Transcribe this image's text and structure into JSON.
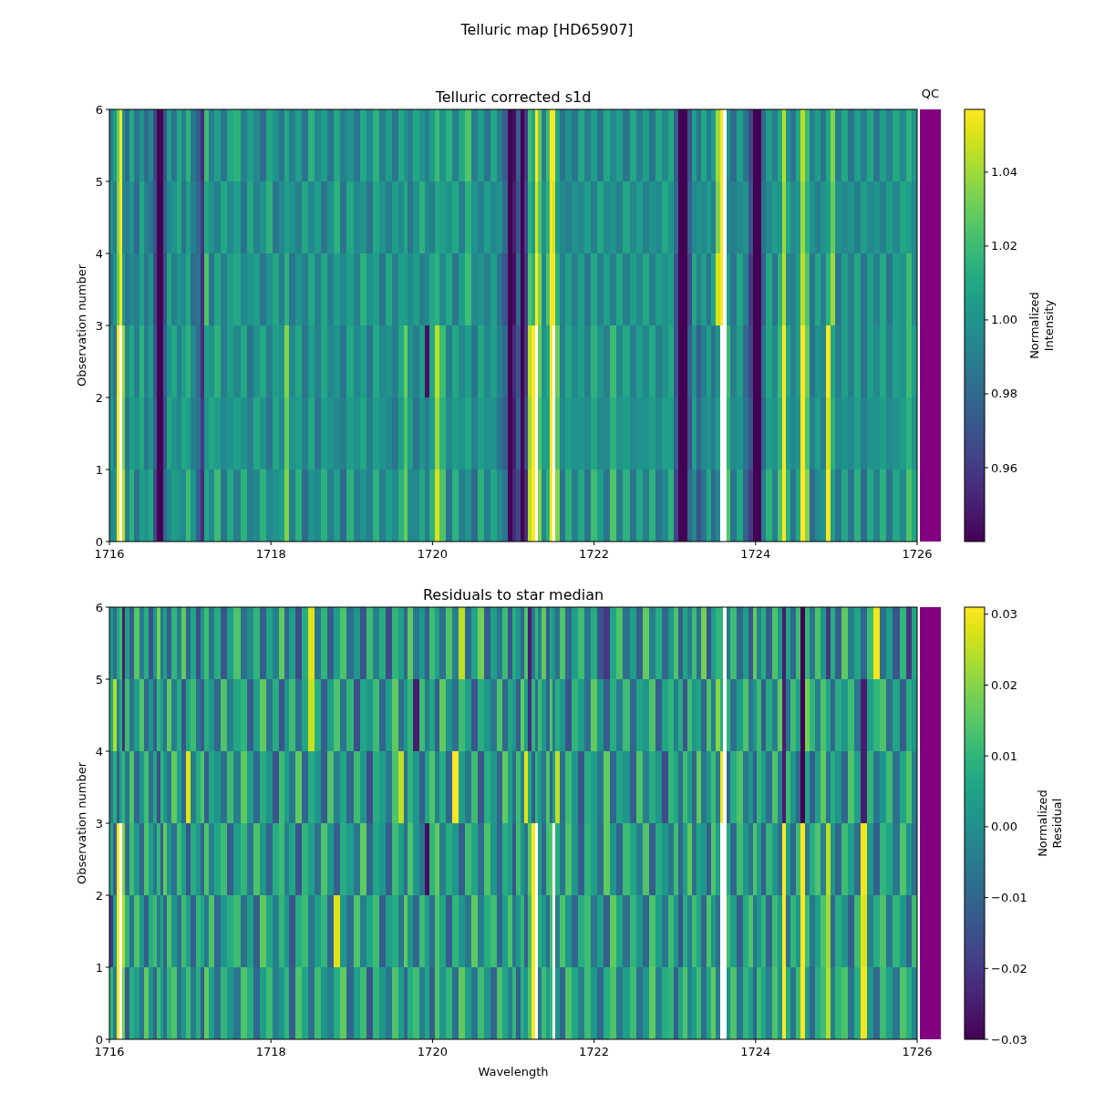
{
  "chart_data": [
    {
      "type": "heatmap",
      "title": "Telluric map [HD65907]",
      "subtitle": "Telluric corrected s1d",
      "ylabel": "Observation number",
      "clabel": "Normalized\nIntensity",
      "annotations": [
        "QC"
      ],
      "x": [
        1716.02,
        1716.07,
        1716.11,
        1716.14,
        1716.17,
        1716.22,
        1716.28,
        1716.34,
        1716.4,
        1716.46,
        1716.52,
        1716.57,
        1716.61,
        1716.65,
        1716.69,
        1716.74,
        1716.8,
        1716.86,
        1716.92,
        1716.98,
        1717.04,
        1717.1,
        1717.15,
        1717.2,
        1717.26,
        1717.34,
        1717.42,
        1717.5,
        1717.58,
        1717.66,
        1717.74,
        1717.82,
        1717.9,
        1717.98,
        1718.06,
        1718.14,
        1718.19,
        1718.26,
        1718.34,
        1718.42,
        1718.5,
        1718.58,
        1718.66,
        1718.74,
        1718.82,
        1718.9,
        1718.98,
        1719.06,
        1719.14,
        1719.22,
        1719.3,
        1719.38,
        1719.46,
        1719.54,
        1719.62,
        1719.66,
        1719.72,
        1719.8,
        1719.87,
        1719.93,
        1720,
        1720.06,
        1720.12,
        1720.2,
        1720.28,
        1720.36,
        1720.44,
        1720.52,
        1720.6,
        1720.68,
        1720.76,
        1720.84,
        1720.9,
        1720.96,
        1721.01,
        1721.06,
        1721.11,
        1721.16,
        1721.2,
        1721.25,
        1721.29,
        1721.33,
        1721.38,
        1721.43,
        1721.47,
        1721.5,
        1721.54,
        1721.6,
        1721.68,
        1721.76,
        1721.84,
        1721.92,
        1722,
        1722.08,
        1722.16,
        1722.24,
        1722.32,
        1722.4,
        1722.48,
        1722.56,
        1722.64,
        1722.72,
        1722.8,
        1722.88,
        1722.96,
        1723.02,
        1723.07,
        1723.13,
        1723.18,
        1723.24,
        1723.3,
        1723.36,
        1723.42,
        1723.48,
        1723.54,
        1723.58,
        1723.62,
        1723.66,
        1723.72,
        1723.8,
        1723.88,
        1723.94,
        1723.99,
        1724.04,
        1724.09,
        1724.16,
        1724.24,
        1724.3,
        1724.35,
        1724.4,
        1724.46,
        1724.53,
        1724.59,
        1724.64,
        1724.7,
        1724.77,
        1724.84,
        1724.9,
        1724.95,
        1725.02,
        1725.1,
        1725.18,
        1725.26,
        1725.34,
        1725.42,
        1725.5,
        1725.58,
        1725.66,
        1725.74,
        1725.82,
        1725.9,
        1725.97
      ],
      "xlim": [
        1716,
        1726
      ],
      "xticks": [
        1716,
        1718,
        1720,
        1722,
        1724,
        1726
      ],
      "ylim": [
        0,
        6
      ],
      "yticks": [
        0,
        1,
        2,
        3,
        4,
        5,
        6
      ],
      "clim": [
        0.94,
        1.057
      ],
      "cticks": [
        0.96,
        0.98,
        {
          "value": 1,
          "label": "1.00"
        },
        1.02,
        1.04
      ],
      "cells": [
        [
          0.99,
          1.005,
          1.03,
          1.057,
          1.0,
          0.98,
          1.01,
          0.985,
          1.0,
          0.98,
          0.995,
          0.965,
          0.94,
          0.94,
          0.97,
          1.005,
          0.985,
          1.01,
          0.99,
          1.015,
          0.985,
          0.975,
          0.955,
          1.02,
          0.99,
          1.005,
          0.985,
          1.01,
          1.015,
          0.99,
          1.005,
          0.995,
          0.98,
          1.01,
          1.0,
          0.985,
          1.01,
          0.99,
          1.005,
          0.985,
          1.015,
          0.995,
          1.005,
          0.985,
          1.01,
          0.99,
          1.0,
          0.985,
          1.01,
          0.995,
          1.015,
          0.99,
          1.005,
          0.985,
          1.01,
          1.0,
          0.99,
          1.01,
          1.0,
          0.99,
          1.005,
          1.02,
          1.0,
          1.015,
          0.99,
          1.01,
          1.025,
          0.99,
          1.005,
          0.985,
          1.01,
          0.99,
          0.975,
          0.94,
          0.945,
          0.975,
          0.94,
          0.96,
          1.02,
          1.01,
          1.057,
          1.03,
          0.99,
          1.02,
          1.057,
          1.057,
          1.01,
          0.985,
          1.0,
          0.985,
          1.01,
          0.99,
          1.005,
          0.985,
          1.01,
          0.995,
          1.005,
          0.985,
          1.01,
          0.99,
          1.005,
          0.985,
          1.01,
          0.995,
          1.01,
          0.975,
          0.94,
          0.94,
          0.97,
          1.005,
          0.985,
          1.01,
          0.99,
          1.005,
          1.04,
          1.057,
          null,
          1.0,
          0.98,
          1.005,
          0.985,
          0.965,
          0.94,
          0.94,
          0.98,
          1.005,
          0.99,
          1.01,
          1.045,
          1.0,
          0.985,
          1.01,
          1.045,
          1.02,
          0.99,
          1.005,
          0.985,
          1.01,
          1.035,
          0.99,
          1.01,
          0.985,
          1.005,
          0.99,
          1.01,
          0.985,
          1.005,
          0.99,
          1.01,
          0.995,
          1.015,
          1.0
        ],
        [
          1.0,
          0.99,
          1.035,
          1.057,
          0.995,
          0.99,
          1.0,
          0.98,
          1.01,
          0.99,
          0.985,
          0.97,
          0.94,
          0.94,
          0.975,
          0.995,
          1.0,
          1.01,
          0.985,
          1.005,
          0.99,
          0.98,
          0.96,
          1.01,
          1.0,
          0.99,
          1.01,
          0.995,
          1.005,
          0.985,
          1.01,
          0.99,
          1.0,
          1.015,
          0.985,
          0.995,
          1.005,
          1.0,
          0.99,
          1.01,
          0.995,
          1.005,
          0.985,
          1.0,
          1.015,
          0.985,
          1.01,
          0.995,
          1.0,
          0.985,
          1.01,
          1.0,
          0.99,
          1.005,
          0.995,
          1.01,
          0.985,
          1.0,
          1.015,
          0.995,
          0.99,
          1.01,
          1.005,
          1.0,
          1.01,
          0.99,
          1.015,
          1.0,
          0.99,
          1.005,
          0.995,
          1.0,
          0.98,
          0.94,
          0.95,
          0.97,
          0.94,
          0.965,
          1.015,
          1.005,
          1.05,
          1.025,
          1.0,
          1.015,
          1.057,
          1.05,
          1.005,
          0.995,
          0.99,
          1.0,
          0.995,
          1.005,
          0.99,
          1.01,
          0.995,
          1.0,
          0.99,
          1.01,
          0.995,
          1.005,
          0.99,
          1.0,
          0.995,
          1.01,
          1.0,
          0.98,
          0.94,
          0.94,
          0.975,
          0.995,
          1.0,
          0.995,
          1.005,
          0.99,
          1.035,
          1.057,
          null,
          0.995,
          0.99,
          0.995,
          1.0,
          0.97,
          0.94,
          0.94,
          0.985,
          0.995,
          1.005,
          1.0,
          1.04,
          1.01,
          0.995,
          1.0,
          1.04,
          1.015,
          1.0,
          0.99,
          1.0,
          1.005,
          1.03,
          1.0,
          0.995,
          1.0,
          0.99,
          1.005,
          0.995,
          1.0,
          0.99,
          1.005,
          0.995,
          1.01,
          1.005,
          0.995
        ],
        [
          0.985,
          1.0,
          1.03,
          1.057,
          1.005,
          0.985,
          0.995,
          0.99,
          1.005,
          0.985,
          1.0,
          0.965,
          0.94,
          0.94,
          0.97,
          1.01,
          0.99,
          1.0,
          0.995,
          1.01,
          0.98,
          0.985,
          0.955,
          1.025,
          0.985,
          1.01,
          0.99,
          1.005,
          1.01,
          0.995,
          1.0,
          1.005,
          0.985,
          1.0,
          1.01,
          0.99,
          1.015,
          0.985,
          1.0,
          0.99,
          1.01,
          0.99,
          1.01,
          0.99,
          1.005,
          0.995,
          1.005,
          0.99,
          1.015,
          1.0,
          1.005,
          0.985,
          1.01,
          0.99,
          1.005,
          1.005,
          0.995,
          1.005,
          0.99,
          0.995,
          1.01,
          1.015,
          0.995,
          1.01,
          0.985,
          1.005,
          1.02,
          0.995,
          1.0,
          0.99,
          1.005,
          0.985,
          0.97,
          0.94,
          0.945,
          0.98,
          0.94,
          0.96,
          1.025,
          1.015,
          1.057,
          1.035,
          0.995,
          1.025,
          1.057,
          1.057,
          1.015,
          0.99,
          1.005,
          0.99,
          1.005,
          0.985,
          1.01,
          0.99,
          1.005,
          0.99,
          1.01,
          0.99,
          1.005,
          0.995,
          1.01,
          0.99,
          1.005,
          1.0,
          1.005,
          0.97,
          0.94,
          0.94,
          0.965,
          1.01,
          0.99,
          1.005,
          0.985,
          1.01,
          1.05,
          1.057,
          null,
          1.005,
          0.985,
          1.01,
          0.99,
          0.96,
          0.94,
          0.94,
          0.975,
          1.01,
          0.985,
          1.015,
          1.045,
          0.995,
          0.99,
          1.005,
          1.045,
          1.025,
          0.985,
          1.01,
          0.99,
          1.015,
          1.04,
          0.985,
          1.005,
          0.99,
          1.01,
          0.985,
          1.005,
          0.99,
          1.01,
          0.985,
          1.005,
          1.0,
          1.02,
          0.995
        ],
        [
          1.0,
          0.985,
          1.057,
          null,
          1.04,
          0.995,
          1.01,
          0.99,
          1.015,
          0.99,
          1.005,
          0.97,
          0.94,
          0.94,
          0.975,
          1.0,
          1.01,
          0.99,
          1.005,
          1.015,
          0.995,
          0.98,
          0.955,
          1.005,
          1.0,
          1.015,
          0.99,
          1.005,
          0.995,
          1.01,
          0.985,
          1.0,
          1.01,
          0.99,
          1.005,
          1.0,
          1.035,
          0.995,
          1.01,
          0.985,
          1.005,
          0.99,
          1.01,
          0.995,
          1.0,
          0.985,
          1.01,
          0.995,
          1.005,
          0.985,
          1.01,
          0.995,
          1.0,
          0.99,
          1.01,
          1.03,
          1.0,
          0.99,
          1.005,
          0.945,
          1.01,
          1.045,
          1.02,
          0.99,
          1.01,
          0.995,
          1.005,
          0.985,
          1.01,
          0.995,
          1.005,
          0.99,
          0.98,
          0.94,
          0.955,
          0.97,
          0.94,
          0.96,
          1.045,
          1.057,
          null,
          1.03,
          1.0,
          1.01,
          1.057,
          null,
          1.03,
          0.99,
          1.01,
          0.995,
          1.005,
          0.99,
          1.015,
          1.0,
          0.99,
          1.02,
          0.995,
          1.01,
          0.99,
          1.005,
          0.995,
          1.01,
          0.99,
          1.0,
          1.01,
          0.97,
          0.94,
          0.94,
          0.975,
          1.0,
          0.975,
          0.99,
          1.005,
          0.985,
          1.0,
          null,
          null,
          1.02,
          0.99,
          1.005,
          0.98,
          0.965,
          0.94,
          0.94,
          0.985,
          1.01,
          0.995,
          1.02,
          1.057,
          1.01,
          0.99,
          1.005,
          1.057,
          1.03,
          0.985,
          1.0,
          0.995,
          1.057,
          1.01,
          0.99,
          1.005,
          0.99,
          1.01,
          0.985,
          1.005,
          0.995,
          1.01,
          0.99,
          1.005,
          1.0,
          1.02,
          1.005
        ],
        [
          1.005,
          0.99,
          1.057,
          null,
          1.035,
          0.985,
          1.005,
          1.0,
          1.01,
          0.985,
          1.0,
          0.975,
          0.94,
          0.94,
          0.97,
          1.01,
          1.0,
          0.995,
          1.01,
          1.005,
          0.99,
          0.985,
          0.96,
          1.0,
          1.01,
          1.005,
          0.995,
          1.0,
          1.005,
          1.0,
          0.99,
          1.01,
          1.0,
          0.985,
          1.01,
          0.995,
          1.03,
          1.0,
          1.005,
          0.99,
          1.01,
          0.985,
          1.005,
          1.0,
          0.995,
          0.99,
          1.005,
          1.0,
          1.01,
          0.99,
          1.005,
          1.0,
          0.995,
          0.985,
          1.005,
          1.025,
          1.005,
          0.985,
          1.0,
          0.99,
          1.005,
          1.04,
          1.015,
          0.995,
          1.005,
          1.0,
          1.01,
          0.99,
          1.005,
          1.0,
          1.0,
          0.985,
          0.975,
          0.94,
          0.95,
          0.975,
          0.94,
          0.965,
          1.04,
          1.057,
          null,
          1.025,
          1.005,
          1.005,
          1.057,
          null,
          1.025,
          0.995,
          1.005,
          1.0,
          1.0,
          0.995,
          1.01,
          0.995,
          0.995,
          1.015,
          1.0,
          1.005,
          0.995,
          1.0,
          1.0,
          1.005,
          0.995,
          1.005,
          1.005,
          0.975,
          0.94,
          0.94,
          0.97,
          1.005,
          0.98,
          0.995,
          1.0,
          0.99,
          1.005,
          null,
          null,
          1.015,
          0.995,
          1.0,
          0.985,
          0.97,
          0.94,
          0.94,
          0.98,
          1.005,
          1.0,
          1.015,
          1.057,
          1.005,
          0.995,
          1.0,
          1.057,
          1.025,
          0.99,
          1.005,
          0.99,
          1.05,
          1.015,
          0.995,
          1.0,
          0.995,
          1.005,
          0.99,
          1.0,
          1.0,
          1.005,
          0.995,
          1.0,
          1.005,
          1.015,
          1.0
        ],
        [
          0.995,
          1.0,
          1.057,
          null,
          1.045,
          0.99,
          1.015,
          0.985,
          1.005,
          1.0,
          1.01,
          0.965,
          0.94,
          0.94,
          0.98,
          0.995,
          1.005,
          1.0,
          0.995,
          1.02,
          1.0,
          0.975,
          0.955,
          1.01,
          0.995,
          1.02,
          0.985,
          1.01,
          0.99,
          1.015,
          0.99,
          0.995,
          1.015,
          0.995,
          1.0,
          1.005,
          1.035,
          0.99,
          1.015,
          0.98,
          1.0,
          0.995,
          1.015,
          0.99,
          1.005,
          0.98,
          1.015,
          0.99,
          1.0,
          0.99,
          1.015,
          0.99,
          1.005,
          0.995,
          1.015,
          1.03,
          0.995,
          0.995,
          1.01,
          0.99,
          1.015,
          1.05,
          1.025,
          0.985,
          1.015,
          0.99,
          1.0,
          0.98,
          1.015,
          0.99,
          1.01,
          0.995,
          0.985,
          0.94,
          0.955,
          0.965,
          0.94,
          0.955,
          1.045,
          1.057,
          null,
          1.035,
          0.995,
          1.015,
          1.057,
          null,
          1.035,
          0.985,
          1.015,
          0.99,
          1.01,
          0.985,
          1.02,
          1.005,
          0.985,
          1.025,
          0.99,
          1.015,
          0.985,
          1.01,
          0.99,
          1.015,
          0.985,
          0.995,
          1.015,
          0.965,
          0.94,
          0.94,
          0.98,
          0.995,
          0.97,
          0.985,
          1.01,
          0.98,
          0.995,
          null,
          null,
          1.025,
          0.985,
          1.01,
          0.975,
          0.96,
          0.94,
          0.94,
          0.99,
          1.015,
          0.99,
          1.025,
          1.057,
          1.015,
          0.985,
          1.01,
          1.057,
          1.035,
          0.98,
          0.995,
          1.0,
          1.057,
          1.005,
          0.985,
          1.01,
          0.985,
          1.015,
          0.98,
          1.01,
          0.99,
          1.015,
          0.985,
          1.01,
          0.995,
          1.025,
          1.01
        ]
      ]
    },
    {
      "type": "heatmap",
      "title": "Residuals to star median",
      "xlabel": "Wavelength",
      "ylabel": "Observation number",
      "clabel": "Normalized\nResidual",
      "x": [
        1716.02,
        1716.07,
        1716.11,
        1716.14,
        1716.17,
        1716.22,
        1716.28,
        1716.34,
        1716.4,
        1716.46,
        1716.52,
        1716.57,
        1716.61,
        1716.65,
        1716.69,
        1716.74,
        1716.8,
        1716.86,
        1716.92,
        1716.98,
        1717.04,
        1717.1,
        1717.15,
        1717.2,
        1717.26,
        1717.34,
        1717.42,
        1717.5,
        1717.58,
        1717.66,
        1717.74,
        1717.82,
        1717.9,
        1717.98,
        1718.06,
        1718.14,
        1718.19,
        1718.26,
        1718.34,
        1718.42,
        1718.5,
        1718.58,
        1718.66,
        1718.74,
        1718.82,
        1718.9,
        1718.98,
        1719.06,
        1719.14,
        1719.22,
        1719.3,
        1719.38,
        1719.46,
        1719.54,
        1719.62,
        1719.66,
        1719.72,
        1719.8,
        1719.87,
        1719.93,
        1720,
        1720.06,
        1720.12,
        1720.2,
        1720.28,
        1720.36,
        1720.44,
        1720.52,
        1720.6,
        1720.68,
        1720.76,
        1720.84,
        1720.9,
        1720.96,
        1721.01,
        1721.06,
        1721.11,
        1721.16,
        1721.2,
        1721.25,
        1721.29,
        1721.33,
        1721.38,
        1721.43,
        1721.47,
        1721.5,
        1721.54,
        1721.6,
        1721.68,
        1721.76,
        1721.84,
        1721.92,
        1722,
        1722.08,
        1722.16,
        1722.24,
        1722.32,
        1722.4,
        1722.48,
        1722.56,
        1722.64,
        1722.72,
        1722.8,
        1722.88,
        1722.96,
        1723.02,
        1723.07,
        1723.13,
        1723.18,
        1723.24,
        1723.3,
        1723.36,
        1723.42,
        1723.48,
        1723.54,
        1723.58,
        1723.62,
        1723.66,
        1723.72,
        1723.8,
        1723.88,
        1723.94,
        1723.99,
        1724.04,
        1724.09,
        1724.16,
        1724.24,
        1724.3,
        1724.35,
        1724.4,
        1724.46,
        1724.53,
        1724.59,
        1724.64,
        1724.7,
        1724.77,
        1724.84,
        1724.9,
        1724.95,
        1725.02,
        1725.1,
        1725.18,
        1725.26,
        1725.34,
        1725.42,
        1725.5,
        1725.58,
        1725.66,
        1725.74,
        1725.82,
        1725.9,
        1725.97
      ],
      "xlim": [
        1716,
        1726
      ],
      "xticks": [
        1716,
        1718,
        1720,
        1722,
        1724,
        1726
      ],
      "ylim": [
        0,
        6
      ],
      "yticks": [
        0,
        1,
        2,
        3,
        4,
        5,
        6
      ],
      "clim": [
        -0.03,
        0.031
      ],
      "cticks": [
        {
          "value": -0.03,
          "label": "−0.03"
        },
        {
          "value": -0.02,
          "label": "−0.02"
        },
        {
          "value": -0.01,
          "label": "−0.01"
        },
        {
          "value": 0,
          "label": "0.00"
        },
        0.01,
        0.02,
        0.03
      ],
      "cells": [
        [
          0.002,
          -0.008,
          0.006,
          0.012,
          -0.025,
          0.004,
          -0.012,
          0.015,
          -0.005,
          0.008,
          -0.015,
          0.002,
          0.018,
          -0.006,
          0.004,
          -0.012,
          0.01,
          -0.004,
          0.016,
          -0.01,
          0.006,
          -0.016,
          0.002,
          0.012,
          -0.006,
          0.008,
          -0.014,
          0.004,
          0.014,
          -0.008,
          0.0,
          0.01,
          -0.012,
          0.006,
          -0.004,
          0.016,
          -0.01,
          0.004,
          -0.016,
          0.008,
          0.028,
          -0.006,
          0.01,
          -0.012,
          0.004,
          0.014,
          -0.008,
          0.002,
          -0.014,
          0.012,
          -0.004,
          0.008,
          -0.016,
          0.01,
          0.004,
          -0.01,
          0.016,
          -0.006,
          0.002,
          -0.012,
          0.012,
          0.004,
          -0.008,
          0.014,
          -0.004,
          0.025,
          -0.01,
          0.006,
          0.018,
          -0.012,
          0.004,
          -0.006,
          0.012,
          -0.014,
          0.008,
          0.002,
          -0.01,
          0.014,
          -0.025,
          -0.006,
          0.01,
          -0.004,
          0.016,
          -0.012,
          0.006,
          0.002,
          -0.008,
          0.014,
          -0.01,
          0.004,
          0.012,
          -0.006,
          0.008,
          -0.014,
          -0.02,
          0.006,
          0.014,
          -0.008,
          0.004,
          -0.012,
          0.016,
          -0.004,
          0.008,
          -0.01,
          0.002,
          0.014,
          -0.012,
          0.006,
          -0.004,
          0.012,
          -0.008,
          0.018,
          -0.014,
          0.004,
          0.01,
          0.01,
          null,
          -0.006,
          0.012,
          -0.01,
          0.004,
          -0.014,
          0.016,
          -0.004,
          0.008,
          -0.012,
          0.014,
          0.002,
          -0.025,
          0.006,
          -0.01,
          0.012,
          -0.03,
          0.01,
          -0.006,
          0.014,
          0.002,
          -0.02,
          0.008,
          -0.012,
          0.016,
          -0.004,
          0.006,
          -0.01,
          0.012,
          0.03,
          -0.008,
          0.004,
          -0.014,
          0.01,
          -0.02,
          0.006
        ],
        [
          0.006,
          0.024,
          -0.004,
          0.008,
          -0.022,
          0.012,
          -0.006,
          0.004,
          0.014,
          -0.01,
          0.002,
          -0.012,
          0.01,
          0.004,
          -0.008,
          0.016,
          -0.004,
          0.008,
          -0.014,
          0.006,
          0.012,
          -0.006,
          -0.012,
          0.008,
          0.002,
          -0.01,
          0.014,
          -0.004,
          0.006,
          0.01,
          -0.012,
          0.004,
          0.016,
          -0.006,
          0.008,
          -0.014,
          0.002,
          0.012,
          -0.008,
          0.006,
          0.026,
          0.008,
          -0.012,
          0.004,
          0.014,
          -0.006,
          0.01,
          -0.016,
          0.006,
          0.002,
          0.012,
          -0.01,
          0.004,
          0.016,
          -0.008,
          0.002,
          0.01,
          -0.025,
          0.012,
          -0.004,
          0.006,
          -0.012,
          0.016,
          0.002,
          -0.008,
          0.012,
          0.004,
          -0.014,
          0.008,
          0.002,
          -0.006,
          0.014,
          -0.01,
          0.006,
          0.002,
          -0.012,
          0.016,
          0.004,
          -0.022,
          0.01,
          -0.008,
          0.012,
          0.002,
          -0.01,
          0.014,
          -0.006,
          0.008,
          0.002,
          -0.014,
          0.01,
          0.004,
          -0.008,
          0.016,
          0.002,
          -0.012,
          0.008,
          -0.004,
          0.012,
          -0.01,
          0.006,
          0.002,
          0.014,
          -0.012,
          0.006,
          0.01,
          -0.004,
          0.008,
          -0.014,
          0.012,
          0.002,
          0.006,
          -0.01,
          0.014,
          -0.004,
          0.02,
          0.008,
          null,
          0.01,
          -0.008,
          0.004,
          0.014,
          -0.006,
          0.002,
          0.012,
          -0.012,
          0.008,
          -0.004,
          0.016,
          -0.025,
          -0.008,
          0.012,
          0.004,
          -0.03,
          0.018,
          0.01,
          -0.004,
          0.014,
          0.006,
          -0.01,
          0.008,
          0.002,
          0.012,
          -0.006,
          -0.025,
          0.004,
          0.01,
          0.014,
          -0.008,
          0.006,
          -0.012,
          0.008,
          0.002
        ],
        [
          -0.004,
          0.008,
          -0.012,
          0.004,
          0.01,
          -0.006,
          0.014,
          -0.01,
          0.002,
          0.012,
          -0.008,
          0.006,
          -0.016,
          0.01,
          0.002,
          -0.006,
          0.016,
          0.004,
          -0.01,
          0.028,
          -0.004,
          0.008,
          0.014,
          -0.012,
          0.006,
          0.002,
          -0.008,
          0.012,
          -0.004,
          0.016,
          0.004,
          -0.01,
          0.008,
          0.002,
          -0.014,
          0.012,
          0.004,
          -0.006,
          0.016,
          -0.01,
          0.008,
          0.002,
          -0.012,
          0.014,
          -0.004,
          0.006,
          -0.01,
          0.012,
          0.002,
          -0.016,
          0.008,
          0.004,
          -0.006,
          0.014,
          0.025,
          -0.008,
          0.01,
          0.002,
          -0.012,
          0.006,
          0.014,
          -0.004,
          0.008,
          -0.01,
          0.031,
          0.004,
          -0.006,
          0.012,
          -0.014,
          0.008,
          0.002,
          -0.01,
          0.016,
          0.004,
          -0.008,
          0.012,
          -0.004,
          0.028,
          0.006,
          -0.012,
          0.01,
          0.002,
          -0.006,
          0.014,
          -0.01,
          0.004,
          0.025,
          -0.008,
          0.012,
          0.002,
          -0.014,
          0.008,
          0.004,
          -0.006,
          0.016,
          -0.01,
          0.006,
          0.002,
          -0.012,
          0.014,
          -0.004,
          0.008,
          0.002,
          -0.016,
          0.01,
          0.006,
          -0.008,
          0.012,
          0.004,
          -0.01,
          0.016,
          -0.006,
          0.002,
          0.012,
          -0.004,
          0.03,
          null,
          -0.01,
          0.008,
          0.014,
          -0.006,
          0.002,
          -0.012,
          0.01,
          0.004,
          -0.008,
          0.014,
          -0.004,
          -0.025,
          0.012,
          0.002,
          -0.01,
          -0.03,
          0.006,
          -0.012,
          0.004,
          0.016,
          -0.006,
          0.008,
          0.002,
          -0.01,
          0.014,
          0.004,
          -0.025,
          0.01,
          -0.006,
          0.002,
          0.012,
          -0.008,
          0.006,
          0.014,
          -0.004
        ],
        [
          0.006,
          -0.012,
          0.031,
          null,
          0.02,
          -0.008,
          0.012,
          0.002,
          -0.01,
          0.014,
          0.004,
          -0.006,
          0.01,
          -0.012,
          0.016,
          0.002,
          -0.008,
          0.012,
          0.004,
          -0.014,
          0.008,
          0.002,
          -0.01,
          0.014,
          -0.004,
          0.006,
          0.012,
          -0.012,
          0.004,
          0.01,
          -0.006,
          0.014,
          0.002,
          -0.01,
          0.008,
          0.012,
          -0.004,
          0.006,
          -0.014,
          0.01,
          0.004,
          -0.008,
          0.014,
          0.002,
          -0.012,
          0.008,
          0.004,
          -0.006,
          0.016,
          -0.01,
          0.006,
          0.002,
          -0.012,
          0.012,
          0.004,
          -0.008,
          0.014,
          0.002,
          -0.006,
          -0.028,
          0.01,
          0.016,
          -0.004,
          0.008,
          0.002,
          -0.012,
          0.012,
          0.006,
          -0.008,
          0.014,
          0.002,
          -0.01,
          0.008,
          0.004,
          -0.014,
          0.012,
          0.002,
          -0.006,
          0.016,
          0.031,
          null,
          0.004,
          -0.01,
          0.012,
          0.015,
          null,
          0.008,
          -0.006,
          0.014,
          0.002,
          -0.012,
          0.01,
          0.004,
          -0.008,
          0.016,
          0.002,
          -0.01,
          0.012,
          0.006,
          -0.004,
          0.014,
          -0.012,
          0.008,
          0.002,
          -0.006,
          0.012,
          -0.01,
          0.004,
          0.016,
          -0.008,
          0.006,
          0.002,
          -0.012,
          0.014,
          0.004,
          null,
          null,
          0.008,
          -0.01,
          0.012,
          0.002,
          -0.006,
          0.014,
          0.004,
          -0.012,
          0.01,
          0.002,
          -0.008,
          0.031,
          0.004,
          -0.01,
          0.012,
          0.031,
          -0.006,
          0.008,
          0.014,
          -0.004,
          0.025,
          0.002,
          -0.01,
          0.012,
          0.004,
          -0.008,
          0.03,
          0.002,
          -0.012,
          0.01,
          0.006,
          -0.006,
          0.014,
          0.002,
          -0.008
        ],
        [
          -0.02,
          0.004,
          0.031,
          null,
          0.024,
          0.01,
          -0.006,
          0.014,
          0.002,
          -0.012,
          0.008,
          0.012,
          -0.004,
          0.006,
          -0.01,
          0.014,
          0.002,
          -0.008,
          0.012,
          0.004,
          -0.012,
          0.01,
          0.006,
          -0.006,
          0.014,
          -0.01,
          0.002,
          0.008,
          0.012,
          -0.008,
          0.004,
          -0.012,
          0.016,
          0.006,
          -0.004,
          0.01,
          0.002,
          -0.014,
          0.008,
          0.012,
          -0.006,
          0.004,
          0.01,
          -0.01,
          0.028,
          0.002,
          -0.008,
          0.014,
          -0.004,
          0.006,
          0.012,
          -0.012,
          0.004,
          0.008,
          -0.006,
          0.016,
          0.002,
          -0.01,
          0.012,
          0.004,
          -0.008,
          0.014,
          0.006,
          -0.012,
          0.01,
          0.002,
          -0.006,
          0.016,
          -0.004,
          0.008,
          0.012,
          -0.01,
          0.004,
          0.014,
          -0.006,
          0.002,
          0.01,
          -0.012,
          0.012,
          0.031,
          null,
          0.008,
          0.002,
          -0.008,
          0.012,
          null,
          -0.004,
          0.014,
          0.002,
          -0.01,
          0.008,
          0.012,
          -0.006,
          0.004,
          -0.012,
          0.016,
          0.006,
          -0.008,
          0.01,
          0.002,
          -0.01,
          0.014,
          0.004,
          -0.006,
          0.012,
          0.002,
          -0.014,
          0.008,
          -0.004,
          0.012,
          0.006,
          -0.01,
          0.014,
          0.002,
          -0.008,
          null,
          null,
          0.012,
          0.004,
          -0.012,
          0.008,
          0.014,
          -0.006,
          0.002,
          0.01,
          -0.01,
          0.012,
          0.004,
          0.031,
          -0.008,
          0.01,
          0.002,
          0.031,
          0.012,
          -0.006,
          0.004,
          0.014,
          0.022,
          -0.01,
          0.008,
          0.002,
          -0.012,
          0.012,
          0.028,
          -0.004,
          0.008,
          0.014,
          -0.006,
          0.01,
          0.002,
          -0.01,
          0.012
        ],
        [
          0.01,
          -0.004,
          0.031,
          null,
          0.018,
          -0.012,
          0.008,
          0.004,
          -0.006,
          0.016,
          0.002,
          -0.01,
          0.012,
          0.004,
          -0.008,
          0.01,
          0.014,
          -0.006,
          0.002,
          0.012,
          -0.004,
          0.008,
          -0.012,
          0.016,
          0.004,
          -0.008,
          0.01,
          0.002,
          -0.006,
          0.014,
          0.008,
          -0.01,
          0.004,
          0.012,
          -0.004,
          0.002,
          0.01,
          -0.012,
          0.014,
          0.006,
          -0.008,
          0.012,
          0.002,
          -0.004,
          0.008,
          0.016,
          -0.01,
          0.004,
          0.012,
          -0.014,
          0.01,
          0.002,
          -0.006,
          0.014,
          0.004,
          -0.01,
          0.008,
          0.012,
          -0.004,
          0.006,
          -0.012,
          0.014,
          0.002,
          0.01,
          -0.008,
          0.016,
          0.004,
          -0.006,
          0.012,
          0.002,
          -0.01,
          0.014,
          0.006,
          -0.004,
          0.01,
          -0.012,
          0.008,
          0.002,
          0.014,
          0.031,
          null,
          -0.006,
          0.012,
          0.004,
          0.01,
          null,
          0.002,
          -0.01,
          0.014,
          0.006,
          -0.004,
          0.012,
          0.002,
          -0.01,
          0.008,
          0.014,
          -0.006,
          0.004,
          0.012,
          -0.008,
          0.002,
          0.016,
          -0.004,
          0.008,
          0.01,
          -0.012,
          0.006,
          0.014,
          -0.002,
          0.004,
          0.012,
          -0.008,
          0.006,
          0.016,
          -0.004,
          null,
          null,
          0.002,
          0.014,
          -0.006,
          0.01,
          0.004,
          -0.01,
          0.012,
          0.006,
          -0.004,
          0.014,
          0.002,
          0.031,
          0.008,
          -0.006,
          0.012,
          0.031,
          0.004,
          -0.01,
          0.008,
          0.012,
          0.024,
          -0.004,
          0.01,
          0.014,
          -0.006,
          0.008,
          0.03,
          0.002,
          -0.01,
          0.012,
          0.004,
          -0.006,
          0.014,
          0.008,
          -0.002
        ]
      ]
    }
  ]
}
